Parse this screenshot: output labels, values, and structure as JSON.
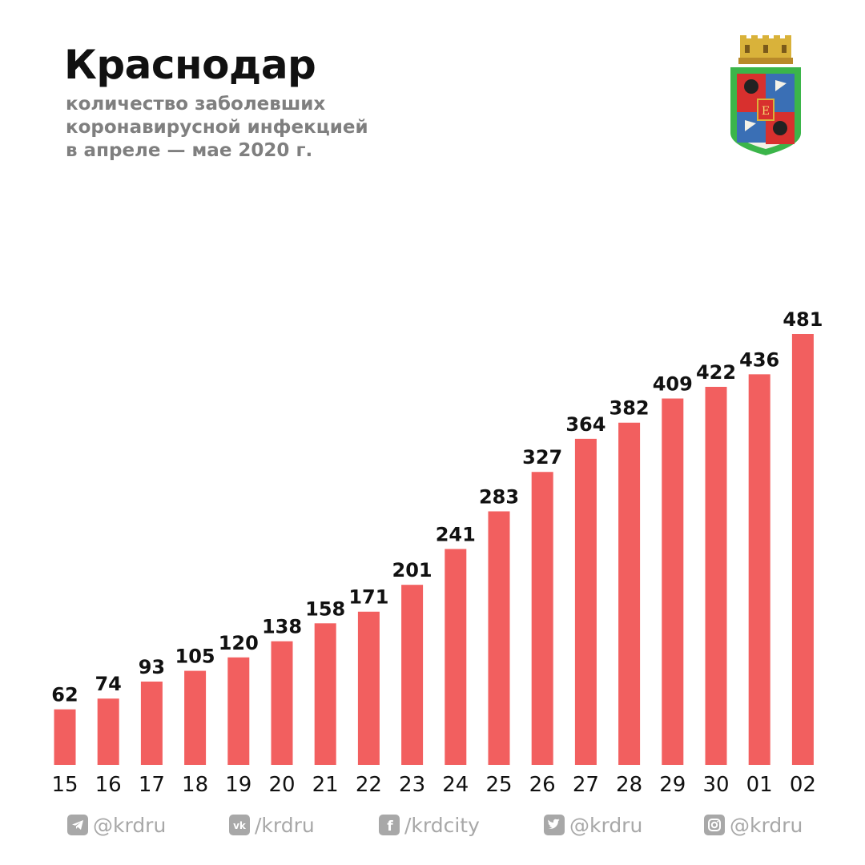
{
  "header": {
    "title": "Краснодар",
    "subtitle_lines": [
      "количество заболевших",
      "коронавирусной инфекцией",
      "в апреле — мае 2020 г."
    ]
  },
  "emblem": {
    "icon": "krasnodar-coat-of-arms-icon"
  },
  "chart_data": {
    "type": "bar",
    "title": "Краснодар",
    "subtitle": "количество заболевших коронавирусной инфекцией в апреле — мае 2020 г.",
    "xlabel": "",
    "ylabel": "",
    "categories": [
      "15",
      "16",
      "17",
      "18",
      "19",
      "20",
      "21",
      "22",
      "23",
      "24",
      "25",
      "26",
      "27",
      "28",
      "29",
      "30",
      "01",
      "02"
    ],
    "values": [
      62,
      74,
      93,
      105,
      120,
      138,
      158,
      171,
      201,
      241,
      283,
      327,
      364,
      382,
      409,
      422,
      436,
      481
    ],
    "ylim": [
      0,
      481
    ],
    "bar_color": "#f25f5f",
    "grid": false,
    "legend": "none"
  },
  "footer": {
    "items": [
      {
        "icon": "telegram-icon",
        "text": "@krdru"
      },
      {
        "icon": "vk-icon",
        "text": "/krdru"
      },
      {
        "icon": "facebook-icon",
        "text": "/krdcity"
      },
      {
        "icon": "twitter-icon",
        "text": "@krdru"
      },
      {
        "icon": "instagram-icon",
        "text": "@krdru"
      }
    ],
    "color": "#a8a8a8"
  }
}
